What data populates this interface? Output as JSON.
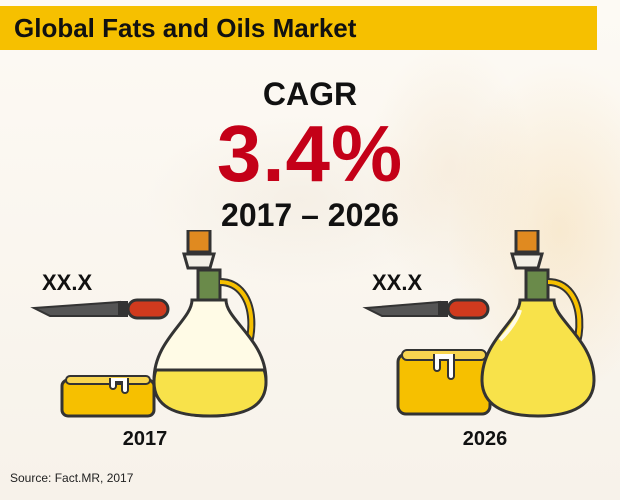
{
  "header": {
    "title": "Global Fats and Oils Market"
  },
  "cagr": {
    "label": "CAGR",
    "value": "3.4%",
    "period": "2017 – 2026"
  },
  "markers": [
    {
      "year": "2017",
      "value": "XX.X"
    },
    {
      "year": "2026",
      "value": "XX.X"
    }
  ],
  "source": "Source: Fact.MR, 2017",
  "colors": {
    "title_bar": "#f6c000",
    "cagr_value": "#c40018",
    "butter": "#f6c000",
    "oil": "#f8e24a",
    "handle": "#d03a1e",
    "outline": "#333333"
  },
  "icons": [
    "background-image",
    "butter-icon",
    "knife-icon",
    "oil-jug-icon"
  ]
}
